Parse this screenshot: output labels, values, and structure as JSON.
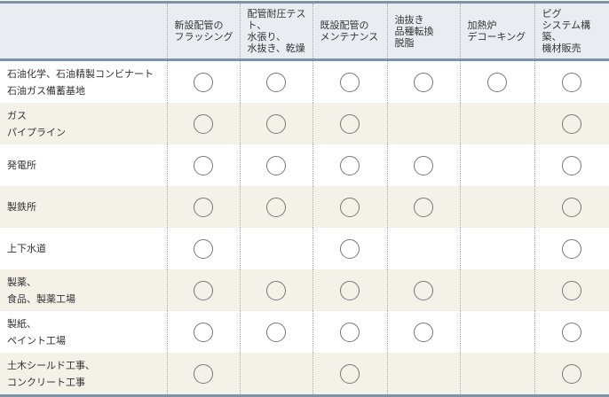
{
  "columns": [
    "",
    "新設配管の\nフラッシング",
    "配管耐圧テスト、\n水張り、\n水抜き、乾燥",
    "既設配管の\nメンテナンス",
    "油抜き\n品種転換\n脱脂",
    "加熱炉\nデコーキング",
    "ピグ\nシステム構築、\n機材販売"
  ],
  "rows": [
    {
      "label": "石油化学、石油精製コンビナート\n石油ガス備蓄基地",
      "marks": [
        true,
        true,
        true,
        true,
        true,
        true
      ]
    },
    {
      "label": "ガス\nパイプライン",
      "marks": [
        true,
        true,
        true,
        false,
        false,
        true
      ]
    },
    {
      "label": "発電所",
      "marks": [
        true,
        true,
        true,
        true,
        false,
        true
      ]
    },
    {
      "label": "製鉄所",
      "marks": [
        true,
        true,
        true,
        true,
        false,
        true
      ]
    },
    {
      "label": "上下水道",
      "marks": [
        true,
        false,
        true,
        false,
        false,
        true
      ]
    },
    {
      "label": "製薬、\n食品、製薬工場",
      "marks": [
        true,
        true,
        true,
        true,
        false,
        true
      ]
    },
    {
      "label": "製紙、\nペイント工場",
      "marks": [
        true,
        true,
        true,
        true,
        false,
        true
      ]
    },
    {
      "label": "土木シールド工事、\nコンクリート工事",
      "marks": [
        true,
        false,
        true,
        false,
        false,
        true
      ]
    }
  ],
  "mark_symbol": "circle-icon",
  "colors": {
    "header_bg": "#e9edf1",
    "border": "#7d93a8",
    "alt_row_bg": "#f3f1e8"
  }
}
